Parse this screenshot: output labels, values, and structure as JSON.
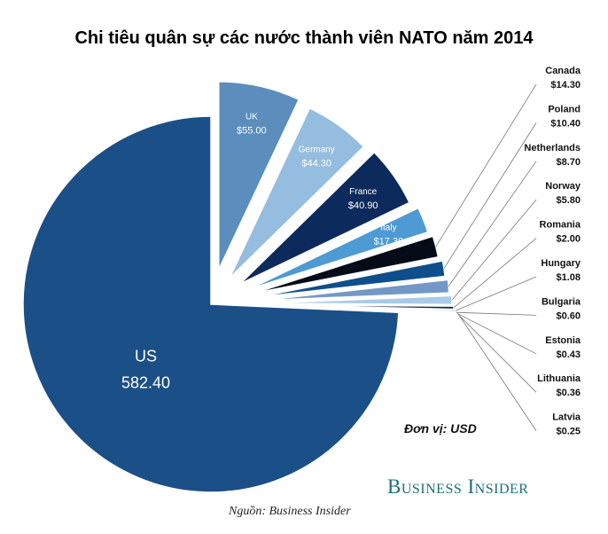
{
  "chart_data": {
    "type": "pie",
    "title": "Chi tiêu quân sự các nước thành viên NATO năm 2014",
    "unit_label": "Đơn vị: USD",
    "slices": [
      {
        "name": "US",
        "value": 582.4,
        "label": "582.40",
        "color": "#1b4f87",
        "label_position": "inside"
      },
      {
        "name": "UK",
        "value": 55.0,
        "label": "$55.00",
        "color": "#5b8dbd",
        "label_position": "inside"
      },
      {
        "name": "Germany",
        "value": 44.3,
        "label": "$44.30",
        "color": "#95bddf",
        "label_position": "inside"
      },
      {
        "name": "France",
        "value": 40.9,
        "label": "$40.90",
        "color": "#0d2a5c",
        "label_position": "inside"
      },
      {
        "name": "Italy",
        "value": 17.3,
        "label": "$17.30",
        "color": "#4d9ad4",
        "label_position": "inside"
      },
      {
        "name": "Canada",
        "value": 14.3,
        "label": "$14.30",
        "color": "#050b17",
        "label_position": "outside"
      },
      {
        "name": "Poland",
        "value": 10.4,
        "label": "$10.40",
        "color": "#0f4e8c",
        "label_position": "outside"
      },
      {
        "name": "Netherlands",
        "value": 8.7,
        "label": "$8.70",
        "color": "#7398c7",
        "label_position": "outside"
      },
      {
        "name": "Norway",
        "value": 5.8,
        "label": "$5.80",
        "color": "#a9cbe8",
        "label_position": "outside"
      },
      {
        "name": "Romania",
        "value": 2.0,
        "label": "$2.00",
        "color": "#0d2a5c",
        "label_position": "outside"
      },
      {
        "name": "Hungary",
        "value": 1.08,
        "label": "$1.08",
        "color": "#3f86c6",
        "label_position": "outside"
      },
      {
        "name": "Bulgaria",
        "value": 0.6,
        "label": "$0.60",
        "color": "#050b17",
        "label_position": "outside"
      },
      {
        "name": "Estonia",
        "value": 0.43,
        "label": "$0.43",
        "color": "#0f4e8c",
        "label_position": "outside"
      },
      {
        "name": "Lithuania",
        "value": 0.36,
        "label": "$0.36",
        "color": "#5b8dbd",
        "label_position": "outside"
      },
      {
        "name": "Latvia",
        "value": 0.25,
        "label": "$0.25",
        "color": "#95bddf",
        "label_position": "outside"
      }
    ],
    "legend": "none"
  },
  "footer": {
    "brand": "Business Insider",
    "source": "Nguồn: Business Insider"
  }
}
